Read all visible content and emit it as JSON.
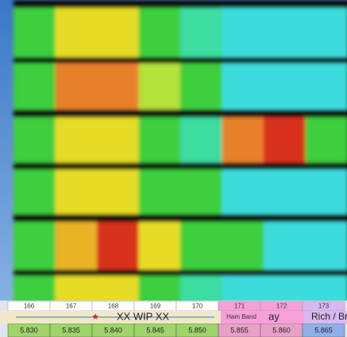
{
  "table": {
    "columns": [
      166,
      167,
      168,
      169,
      170,
      171,
      172,
      173
    ],
    "band_labels": [
      "XX WIP XX",
      "Ham Band",
      "ay",
      "Rich / Br"
    ],
    "frequencies": [
      "5.830",
      "5.835",
      "5.840",
      "5.845",
      "5.850",
      "5.855",
      "5.860",
      "5.865"
    ]
  }
}
